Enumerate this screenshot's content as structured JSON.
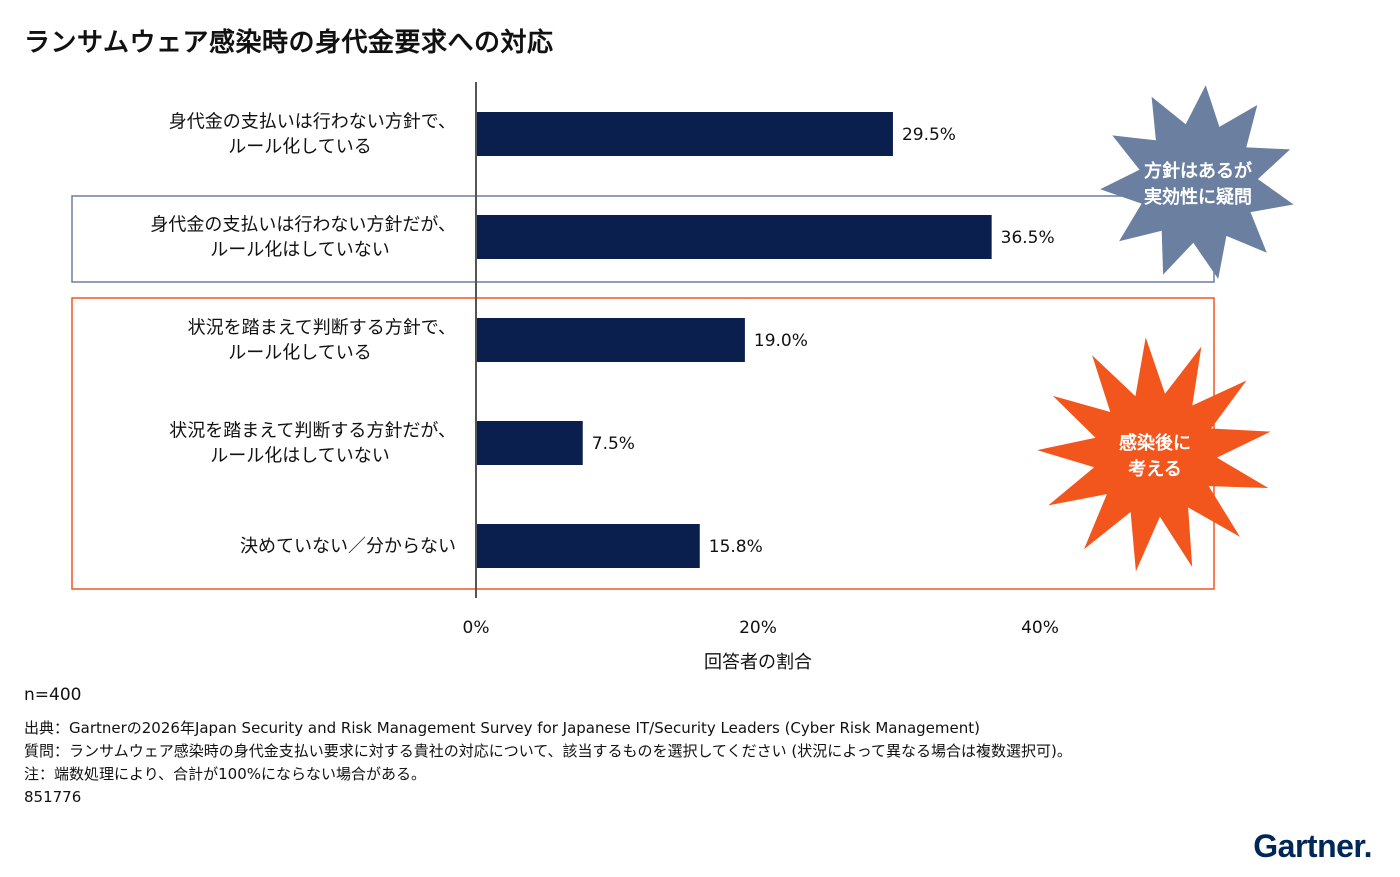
{
  "title": "ランサムウェア感染時の身代金要求への対応",
  "chart_data": {
    "type": "bar",
    "orientation": "horizontal",
    "categories": [
      [
        "身代金の支払いは行わない方針で、",
        "ルール化している"
      ],
      [
        "身代金の支払いは行わない方針だが、",
        "ルール化はしていない"
      ],
      [
        "状況を踏まえて判断する方針で、",
        "ルール化している"
      ],
      [
        "状況を踏まえて判断する方針だが、",
        "ルール化はしていない"
      ],
      [
        "決めていない／分からない"
      ]
    ],
    "values": [
      29.5,
      36.5,
      19.0,
      7.5,
      15.8
    ],
    "value_labels": [
      "29.5%",
      "36.5%",
      "19.0%",
      "7.5%",
      "15.8%"
    ],
    "xlabel": "回答者の割合",
    "xlim": [
      0,
      40
    ],
    "xticks": [
      "0%",
      "20%",
      "40%"
    ],
    "bar_color": "#0b1f4f",
    "grid": false,
    "annotations": [
      {
        "text": [
          "方針はあるが",
          "実効性に疑問"
        ],
        "applies_to": [
          0,
          1
        ],
        "color": "#6b7fa0",
        "box_color": "#6b7fa0"
      },
      {
        "text": [
          "感染後に",
          "考える"
        ],
        "applies_to": [
          2,
          3,
          4
        ],
        "color": "#f2561d",
        "box_color": "#f2561d"
      }
    ]
  },
  "footer": {
    "n": "n=400",
    "source": "出典：Gartnerの2026年Japan Security and Risk Management Survey for Japanese IT/Security Leaders (Cyber Risk Management)",
    "question": "質問：ランサムウェア感染時の身代金支払い要求に対する貴社の対応について、該当するものを選択してください (状況によって異なる場合は複数選択可)。",
    "note": "注：端数処理により、合計が100%にならない場合がある。",
    "id": "851776"
  },
  "brand": {
    "logo": "Gartner",
    "logo_mark": ".",
    "color": "#002856"
  }
}
